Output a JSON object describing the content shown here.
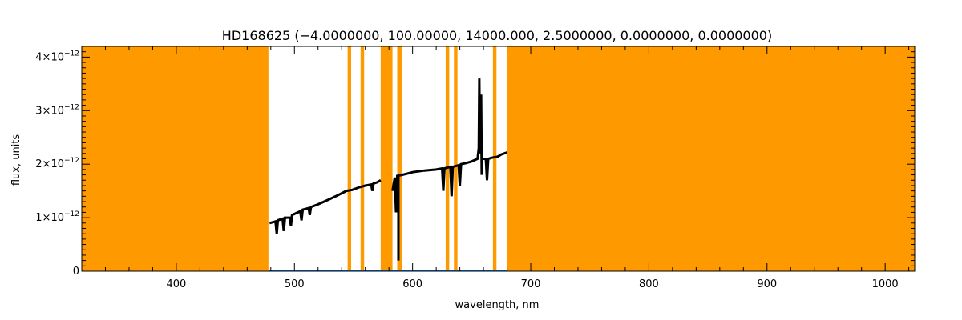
{
  "chart_data": {
    "type": "line",
    "title": "HD168625    (−4.0000000, 100.00000, 14000.000, 2.5000000, 0.0000000, 0.0000000)",
    "xlabel": "wavelength, nm",
    "ylabel": "flux, units",
    "xlim": [
      320,
      1025
    ],
    "ylim": [
      0,
      4.2e-12
    ],
    "x_ticks": [
      {
        "value": 400,
        "label": "400"
      },
      {
        "value": 500,
        "label": "500"
      },
      {
        "value": 600,
        "label": "600"
      },
      {
        "value": 700,
        "label": "700"
      },
      {
        "value": 800,
        "label": "800"
      },
      {
        "value": 900,
        "label": "900"
      },
      {
        "value": 1000,
        "label": "1000"
      }
    ],
    "y_ticks": [
      {
        "value": 0,
        "mant": "0",
        "exp": ""
      },
      {
        "value": 1e-12,
        "mant": "1×10",
        "exp": "−12"
      },
      {
        "value": 2e-12,
        "mant": "2×10",
        "exp": "−12"
      },
      {
        "value": 3e-12,
        "mant": "3×10",
        "exp": "−12"
      },
      {
        "value": 4e-12,
        "mant": "4×10",
        "exp": "−12"
      }
    ],
    "colors": {
      "masked_region": "#ff9900",
      "spectrum": "#000000",
      "zero_line": "#0080ff"
    },
    "masked_regions": [
      [
        320,
        478
      ],
      [
        545,
        548
      ],
      [
        556,
        559
      ],
      [
        573,
        583
      ],
      [
        587,
        591
      ],
      [
        628,
        631
      ],
      [
        635,
        638
      ],
      [
        668,
        671
      ],
      [
        680,
        1025
      ]
    ],
    "series": [
      {
        "segment": 1,
        "x": [
          479,
          484,
          485,
          486,
          490,
          491,
          492,
          496,
          497,
          498,
          505,
          506,
          507,
          512,
          513,
          514,
          520,
          530,
          535,
          544,
          549,
          555,
          560,
          565,
          566,
          567,
          570,
          573
        ],
        "y": [
          9e-13,
          9.3e-13,
          7e-13,
          9.5e-13,
          9.8e-13,
          7.5e-13,
          1e-12,
          1e-12,
          8.5e-13,
          1.05e-12,
          1.12e-12,
          9.5e-13,
          1.15e-12,
          1.18e-12,
          1.05e-12,
          1.2e-12,
          1.25e-12,
          1.35e-12,
          1.4e-12,
          1.5e-12,
          1.52e-12,
          1.57e-12,
          1.6e-12,
          1.62e-12,
          1.5e-12,
          1.64e-12,
          1.66e-12,
          1.7e-12
        ]
      },
      {
        "segment": 2,
        "x": [
          583,
          585,
          586,
          587,
          591,
          595,
          600,
          610,
          620,
          625,
          626,
          627,
          632,
          633,
          634,
          639,
          640,
          641,
          645,
          650,
          655,
          656,
          656.5,
          657,
          658,
          658.5,
          659,
          662,
          663,
          664,
          667,
          672,
          675,
          680
        ],
        "y": [
          1.5e-12,
          1.75e-12,
          1.1e-12,
          1.78e-12,
          1.8e-12,
          1.82e-12,
          1.85e-12,
          1.88e-12,
          1.9e-12,
          1.92e-12,
          1.5e-12,
          1.92e-12,
          1.95e-12,
          1.4e-12,
          1.95e-12,
          1.98e-12,
          1.6e-12,
          2e-12,
          2.02e-12,
          2.05e-12,
          2.1e-12,
          2.3e-12,
          3.6e-12,
          2.2e-12,
          3.3e-12,
          1.8e-12,
          2.1e-12,
          2.1e-12,
          1.7e-12,
          2.1e-12,
          2.12e-12,
          2.14e-12,
          2.18e-12,
          2.22e-12
        ]
      }
    ],
    "series_note": "",
    "extra_lines": [
      {
        "x": [
          588,
          588
        ],
        "y": [
          1.8e-12,
          2e-13
        ]
      }
    ]
  }
}
